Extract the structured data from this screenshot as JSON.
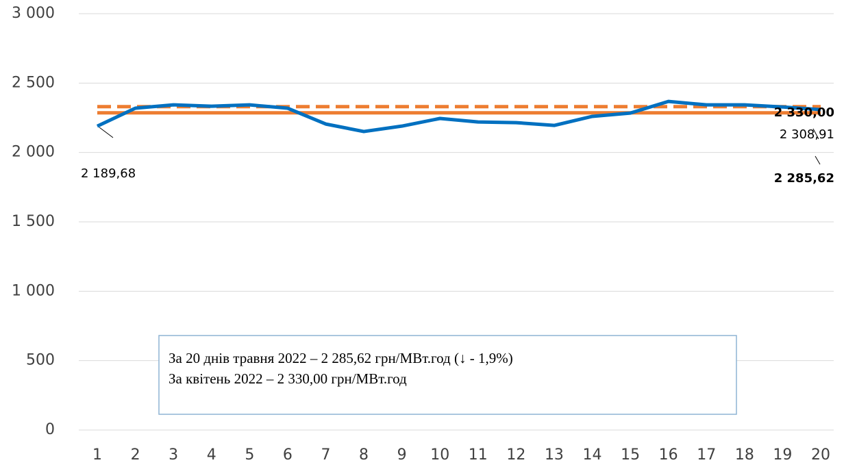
{
  "chart_data": {
    "type": "line",
    "categories": [
      "1",
      "2",
      "3",
      "4",
      "5",
      "6",
      "7",
      "8",
      "9",
      "10",
      "11",
      "12",
      "13",
      "14",
      "15",
      "16",
      "17",
      "18",
      "19",
      "20"
    ],
    "series": [
      {
        "color": "#0070c0",
        "style": "solid",
        "values": [
          2189.68,
          2319,
          2343,
          2333,
          2343,
          2319,
          2205,
          2151,
          2190,
          2245,
          2220,
          2215,
          2195,
          2260,
          2284,
          2368,
          2343,
          2343,
          2328,
          2308.91
        ],
        "value_labels": [
          "2 189,68",
          null,
          null,
          null,
          null,
          null,
          null,
          null,
          null,
          null,
          null,
          null,
          null,
          null,
          null,
          null,
          null,
          null,
          null,
          "2 308,91"
        ]
      },
      {
        "color": "#ed7d31",
        "style": "solid",
        "values": [
          2285.62,
          2285.62,
          2285.62,
          2285.62,
          2285.62,
          2285.62,
          2285.62,
          2285.62,
          2285.62,
          2285.62,
          2285.62,
          2285.62,
          2285.62,
          2285.62,
          2285.62,
          2285.62,
          2285.62,
          2285.62,
          2285.62,
          2285.62
        ],
        "value_labels": [
          null,
          null,
          null,
          null,
          null,
          null,
          null,
          null,
          null,
          null,
          null,
          null,
          null,
          null,
          null,
          null,
          null,
          null,
          null,
          "2 285,62"
        ]
      },
      {
        "color": "#ed7d31",
        "style": "dashed",
        "values": [
          2330,
          2330,
          2330,
          2330,
          2330,
          2330,
          2330,
          2330,
          2330,
          2330,
          2330,
          2330,
          2330,
          2330,
          2330,
          2330,
          2330,
          2330,
          2330,
          2330
        ],
        "value_labels": [
          null,
          null,
          null,
          null,
          null,
          null,
          null,
          null,
          null,
          null,
          null,
          null,
          null,
          null,
          null,
          null,
          null,
          null,
          null,
          "2 330,00"
        ]
      }
    ],
    "ylim": [
      0,
      3000
    ],
    "yticks": [
      0,
      500,
      {
        "value": 1000,
        "label": "1 000"
      },
      {
        "value": 1500,
        "label": "1 500"
      },
      {
        "value": 2000,
        "label": "2 000"
      },
      {
        "value": 2500,
        "label": "2 500"
      },
      {
        "value": 3000,
        "label": "3 000"
      }
    ],
    "grid": true,
    "annotations": [
      "За 20 днів травня 2022 – 2 285,62 грн/МВт.год (↓ - 1,9%)",
      "За квітень 2022 – 2 330,00 грн/МВт.год"
    ]
  }
}
